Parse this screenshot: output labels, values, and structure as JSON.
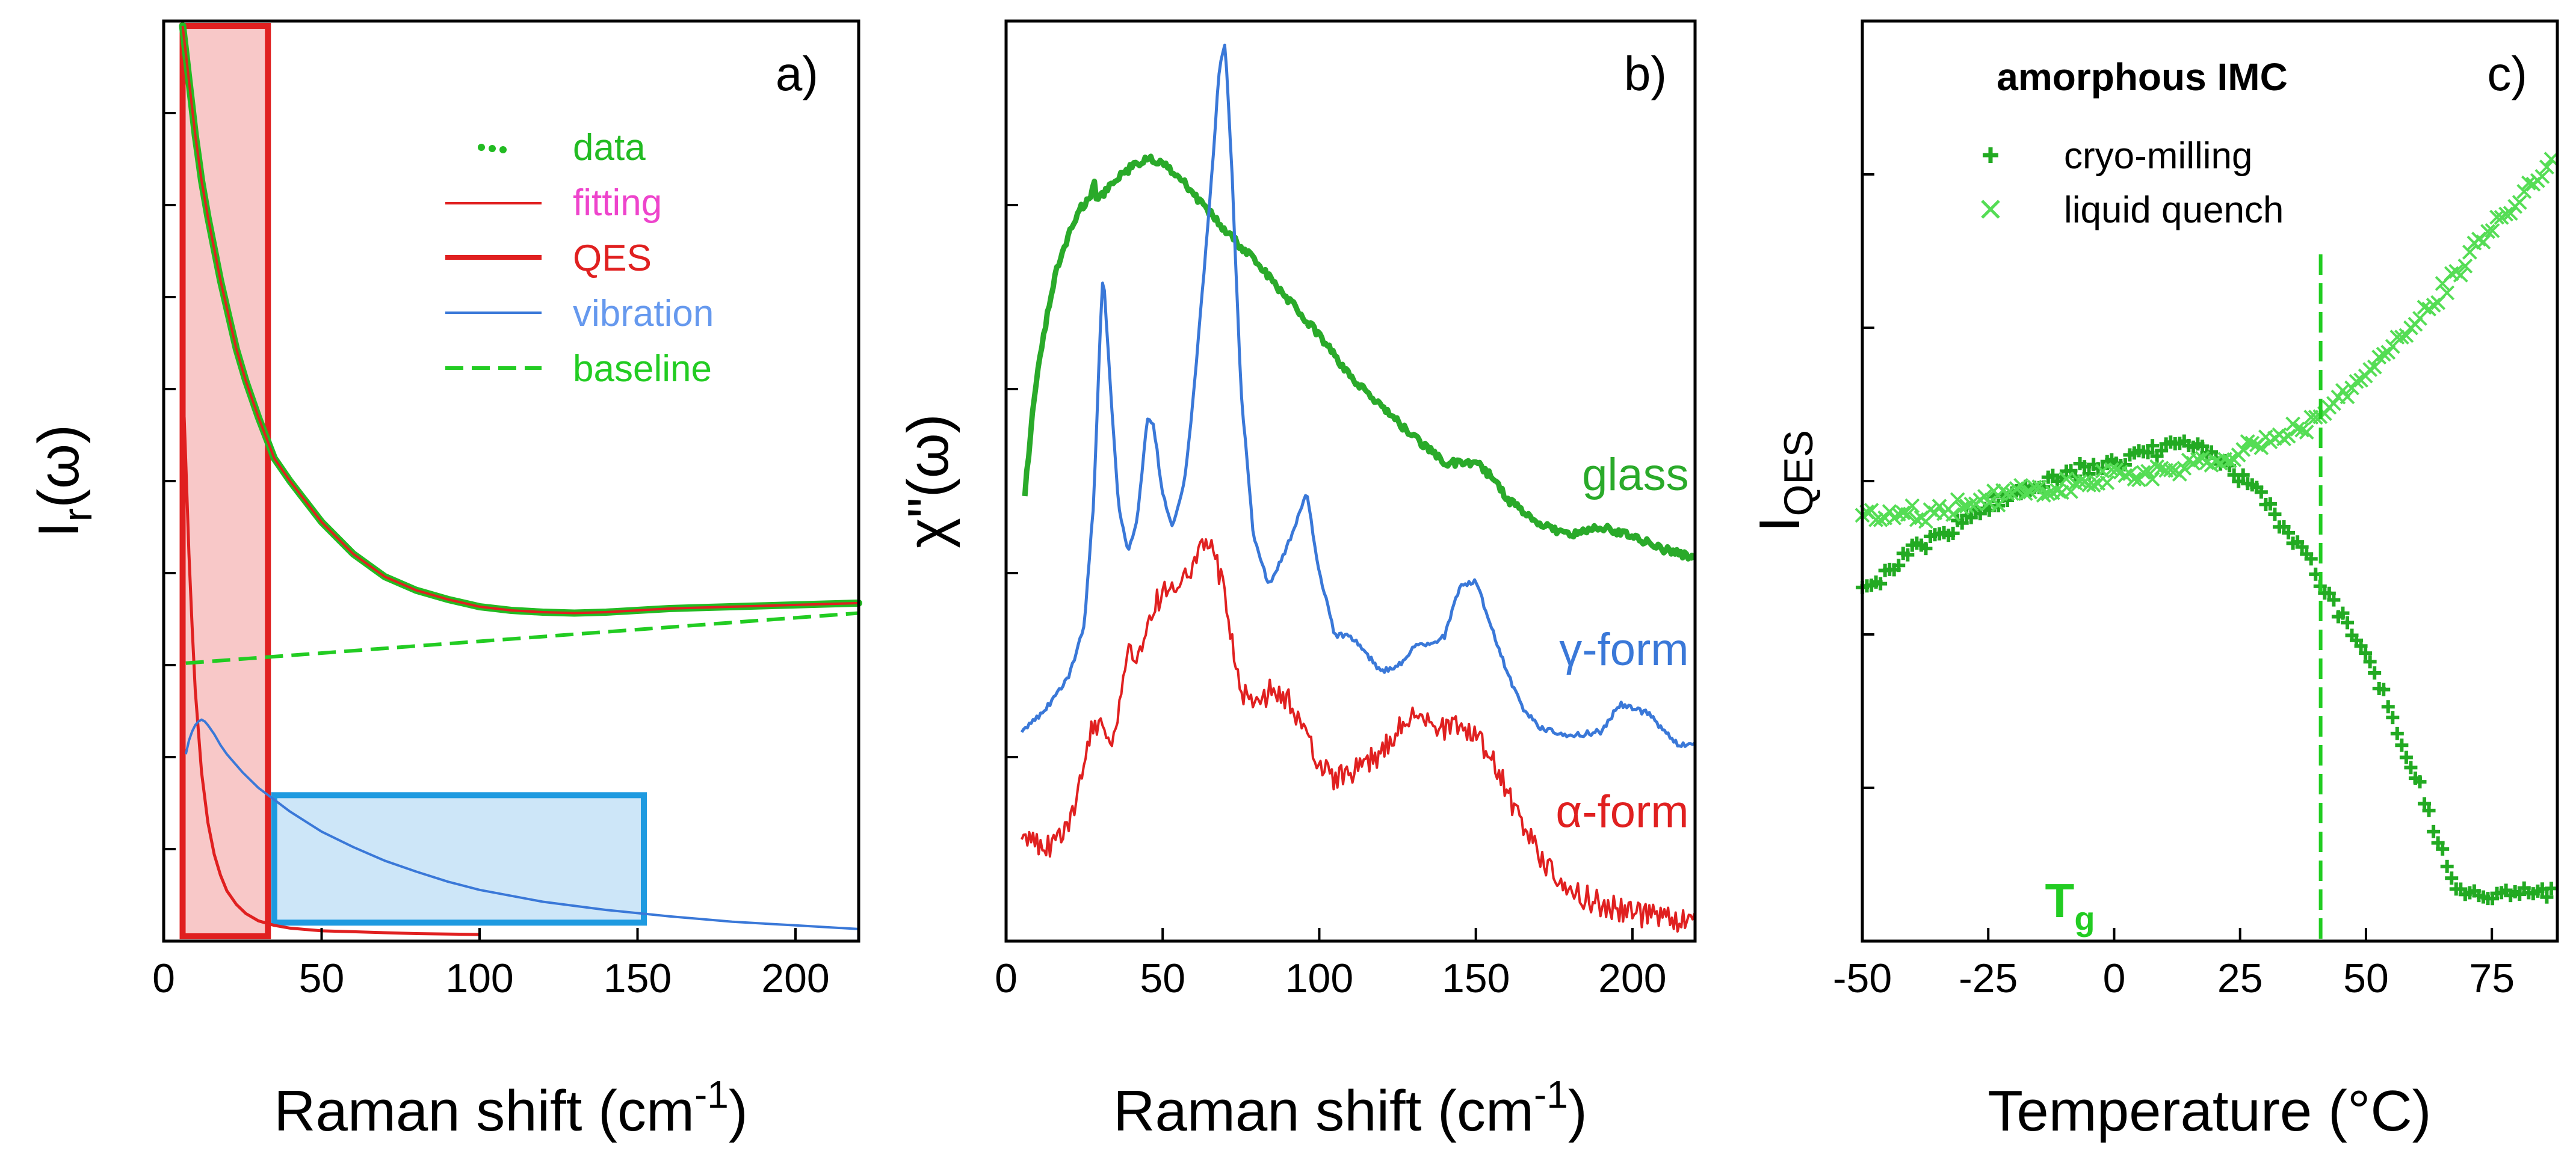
{
  "chart_data": [
    {
      "id": "a",
      "type": "line",
      "panel_label": "a)",
      "xlabel": "Raman shift (cm",
      "xlabel_sup": "-1",
      "xlabel_close": ")",
      "ylabel_main": "I",
      "ylabel_sub": "r",
      "ylabel_rest": "(ω)",
      "xlim": [
        0,
        220
      ],
      "ylim": [
        0,
        1
      ],
      "xticks": [
        0,
        50,
        100,
        150,
        200
      ],
      "legend": [
        {
          "label": "data",
          "color": "#22bb22",
          "style": "dots"
        },
        {
          "label": "fitting",
          "color": "#ee44cc",
          "line": "#e02020",
          "style": "thin"
        },
        {
          "label": "QES",
          "color": "#e02020",
          "style": "thick"
        },
        {
          "label": "vibration",
          "color": "#6699ee",
          "line": "#3a78d8",
          "style": "thin"
        },
        {
          "label": "baseline",
          "color": "#22cc22",
          "style": "dashed"
        }
      ],
      "regions": [
        {
          "name": "qes-region",
          "x": [
            6,
            33
          ],
          "y": [
            0.0,
            1.0
          ],
          "fill": "#f8c8c8",
          "stroke": "#e02020"
        },
        {
          "name": "vibration-region",
          "x": [
            35,
            152
          ],
          "y": [
            0.015,
            0.155
          ],
          "fill": "#cde6f8",
          "stroke": "#1e9ae0"
        }
      ],
      "series": [
        {
          "name": "data",
          "color": "#22bb22",
          "style": "dots",
          "width": 12,
          "x": [
            6,
            7,
            8,
            9,
            10,
            11,
            12,
            14,
            16,
            18,
            20,
            23,
            26,
            30,
            35,
            40,
            50,
            60,
            70,
            80,
            90,
            100,
            110,
            120,
            130,
            140,
            150,
            160,
            170,
            180,
            190,
            200,
            210,
            220
          ],
          "y": [
            1.0,
            0.97,
            0.94,
            0.91,
            0.88,
            0.855,
            0.83,
            0.79,
            0.755,
            0.72,
            0.69,
            0.645,
            0.61,
            0.57,
            0.525,
            0.5,
            0.455,
            0.42,
            0.395,
            0.38,
            0.37,
            0.362,
            0.358,
            0.356,
            0.355,
            0.356,
            0.358,
            0.36,
            0.361,
            0.362,
            0.363,
            0.364,
            0.365,
            0.366
          ]
        },
        {
          "name": "fitting",
          "color": "#e02020",
          "style": "thin",
          "width": 4,
          "x": [
            6,
            8,
            10,
            12,
            14,
            16,
            18,
            20,
            23,
            26,
            30,
            35,
            40,
            50,
            60,
            70,
            80,
            90,
            100,
            110,
            120,
            130,
            140,
            150,
            160,
            170,
            180,
            190,
            200,
            210,
            220
          ],
          "y": [
            1.0,
            0.94,
            0.88,
            0.83,
            0.79,
            0.755,
            0.72,
            0.69,
            0.645,
            0.61,
            0.57,
            0.525,
            0.5,
            0.455,
            0.42,
            0.395,
            0.38,
            0.37,
            0.362,
            0.358,
            0.356,
            0.355,
            0.356,
            0.358,
            0.36,
            0.361,
            0.362,
            0.363,
            0.364,
            0.365,
            0.366
          ]
        },
        {
          "name": "QES",
          "color": "#e02020",
          "style": "thin",
          "width": 5,
          "x": [
            6.5,
            7,
            8,
            9,
            10,
            12,
            14,
            16,
            18,
            20,
            23,
            26,
            30,
            35,
            40,
            50,
            60,
            80,
            100
          ],
          "y": [
            0.57,
            0.52,
            0.42,
            0.34,
            0.27,
            0.18,
            0.125,
            0.09,
            0.067,
            0.05,
            0.035,
            0.025,
            0.017,
            0.012,
            0.009,
            0.006,
            0.005,
            0.003,
            0.002
          ]
        },
        {
          "name": "vibration",
          "color": "#3a78d8",
          "style": "thin",
          "width": 4,
          "x": [
            7,
            8,
            9,
            10,
            11,
            12,
            13,
            14,
            16,
            18,
            20,
            25,
            30,
            35,
            40,
            50,
            60,
            70,
            80,
            90,
            100,
            120,
            140,
            160,
            180,
            200,
            220
          ],
          "y": [
            0.2,
            0.215,
            0.225,
            0.232,
            0.236,
            0.238,
            0.236,
            0.232,
            0.222,
            0.21,
            0.2,
            0.18,
            0.163,
            0.15,
            0.137,
            0.115,
            0.098,
            0.083,
            0.071,
            0.06,
            0.051,
            0.038,
            0.029,
            0.022,
            0.016,
            0.012,
            0.008
          ]
        },
        {
          "name": "baseline",
          "color": "#22cc22",
          "style": "dashed",
          "width": 6,
          "x": [
            7,
            220
          ],
          "y": [
            0.3,
            0.355
          ]
        }
      ]
    },
    {
      "id": "b",
      "type": "line",
      "panel_label": "b)",
      "xlabel": "Raman shift (cm",
      "xlabel_sup": "-1",
      "xlabel_close": ")",
      "ylabel_main": "χ\"(ω)",
      "xlim": [
        0,
        220
      ],
      "ylim": [
        0,
        1
      ],
      "xticks": [
        0,
        50,
        100,
        150,
        200
      ],
      "series_labels": [
        {
          "text": "glass",
          "color": "#2aaa2a",
          "x": 218,
          "y": 0.49
        },
        {
          "text": "γ-form",
          "color": "#3a78d8",
          "x": 218,
          "y": 0.298
        },
        {
          "text": "α-form",
          "color": "#e02020",
          "x": 218,
          "y": 0.12
        }
      ],
      "series": [
        {
          "name": "glass",
          "color": "#2aaa2a",
          "style": "thick",
          "width": 9,
          "jitter": 0.004,
          "x": [
            6,
            8,
            10,
            13,
            16,
            20,
            24,
            27,
            28,
            29,
            31,
            35,
            40,
            46,
            50,
            55,
            60,
            65,
            70,
            80,
            90,
            100,
            110,
            120,
            130,
            140,
            150,
            155,
            160,
            170,
            180,
            190,
            200,
            210,
            220
          ],
          "y": [
            0.485,
            0.56,
            0.62,
            0.68,
            0.73,
            0.77,
            0.8,
            0.81,
            0.83,
            0.81,
            0.815,
            0.83,
            0.845,
            0.855,
            0.85,
            0.835,
            0.815,
            0.795,
            0.775,
            0.74,
            0.7,
            0.66,
            0.615,
            0.58,
            0.55,
            0.52,
            0.52,
            0.505,
            0.48,
            0.455,
            0.44,
            0.45,
            0.44,
            0.425,
            0.415
          ]
        },
        {
          "name": "γ-form",
          "color": "#3a78d8",
          "style": "thin",
          "width": 5,
          "jitter": 0.003,
          "x": [
            5,
            10,
            15,
            20,
            25,
            28,
            30,
            31,
            33,
            36,
            39,
            42,
            45,
            47,
            50,
            53,
            57,
            60,
            63,
            66,
            68,
            70,
            72,
            75,
            79,
            84,
            90,
            96,
            100,
            105,
            110,
            115,
            120,
            126,
            131,
            135,
            140,
            145,
            150,
            155,
            160,
            165,
            170,
            180,
            190,
            196,
            200,
            205,
            210,
            215,
            220
          ],
          "y": [
            0.225,
            0.24,
            0.26,
            0.285,
            0.34,
            0.48,
            0.66,
            0.73,
            0.62,
            0.47,
            0.42,
            0.46,
            0.57,
            0.565,
            0.485,
            0.45,
            0.5,
            0.6,
            0.72,
            0.85,
            0.95,
            0.98,
            0.85,
            0.6,
            0.44,
            0.385,
            0.43,
            0.485,
            0.4,
            0.33,
            0.33,
            0.31,
            0.29,
            0.3,
            0.32,
            0.32,
            0.33,
            0.385,
            0.39,
            0.34,
            0.29,
            0.25,
            0.23,
            0.22,
            0.225,
            0.255,
            0.25,
            0.245,
            0.225,
            0.21,
            0.21
          ]
        },
        {
          "name": "α-form",
          "color": "#e02020",
          "style": "thin",
          "width": 4,
          "jitter": 0.014,
          "x": [
            5,
            10,
            15,
            20,
            25,
            28,
            30,
            33,
            36,
            39,
            42,
            45,
            48,
            52,
            56,
            60,
            63,
            66,
            70,
            75,
            80,
            85,
            90,
            95,
            100,
            105,
            110,
            115,
            120,
            126,
            130,
            135,
            140,
            145,
            150,
            155,
            160,
            165,
            170,
            175,
            180,
            190,
            200,
            210,
            220
          ],
          "y": [
            0.11,
            0.1,
            0.1,
            0.12,
            0.18,
            0.24,
            0.23,
            0.21,
            0.25,
            0.31,
            0.3,
            0.35,
            0.37,
            0.38,
            0.395,
            0.41,
            0.425,
            0.43,
            0.37,
            0.27,
            0.26,
            0.27,
            0.26,
            0.22,
            0.19,
            0.17,
            0.18,
            0.19,
            0.2,
            0.235,
            0.24,
            0.235,
            0.23,
            0.23,
            0.22,
            0.2,
            0.16,
            0.12,
            0.09,
            0.07,
            0.05,
            0.035,
            0.025,
            0.02,
            0.015
          ]
        }
      ]
    },
    {
      "id": "c",
      "type": "scatter",
      "panel_label": "c)",
      "title": "amorphous IMC",
      "xlabel": "Temperature (°C)",
      "ylabel_main": "I",
      "ylabel_sub": "QES",
      "xlim": [
        -50,
        88
      ],
      "ylim": [
        0,
        1
      ],
      "xticks": [
        -50,
        -25,
        0,
        25,
        50,
        75
      ],
      "vline": {
        "x": 41,
        "label_main": "T",
        "label_sub": "g",
        "color": "#22cc22"
      },
      "legend": [
        {
          "label": "cryo-milling",
          "color": "#22aa22",
          "marker": "plus"
        },
        {
          "label": "liquid quench",
          "color": "#55dd55",
          "marker": "cross"
        }
      ],
      "series": [
        {
          "name": "cryo-milling",
          "color": "#22aa22",
          "marker": "plus",
          "jitter": 0.007,
          "x": [
            -50,
            -48,
            -46,
            -44,
            -42,
            -40,
            -38,
            -36,
            -34,
            -32,
            -30,
            -28,
            -26,
            -24,
            -22,
            -20,
            -18,
            -16,
            -14,
            -12,
            -10,
            -8,
            -6,
            -4,
            -2,
            0,
            2,
            4,
            6,
            8,
            10,
            12,
            14,
            16,
            18,
            20,
            22,
            24,
            26,
            28,
            30,
            32,
            34,
            36,
            38,
            40,
            42,
            44,
            46,
            48,
            50,
            52,
            54,
            56,
            58,
            60,
            62,
            64,
            66,
            68,
            70,
            72,
            74,
            76,
            78,
            80,
            82,
            84,
            86,
            87
          ],
          "y": [
            0.385,
            0.385,
            0.39,
            0.4,
            0.41,
            0.42,
            0.425,
            0.435,
            0.44,
            0.445,
            0.455,
            0.465,
            0.47,
            0.475,
            0.48,
            0.485,
            0.49,
            0.495,
            0.5,
            0.505,
            0.51,
            0.51,
            0.515,
            0.515,
            0.52,
            0.52,
            0.525,
            0.53,
            0.53,
            0.535,
            0.535,
            0.54,
            0.545,
            0.54,
            0.535,
            0.525,
            0.52,
            0.51,
            0.5,
            0.49,
            0.475,
            0.46,
            0.445,
            0.43,
            0.415,
            0.395,
            0.375,
            0.355,
            0.34,
            0.32,
            0.3,
            0.275,
            0.25,
            0.22,
            0.19,
            0.16,
            0.13,
            0.09,
            0.06,
            0.035,
            0.025,
            0.025,
            0.025,
            0.028,
            0.026,
            0.026,
            0.028,
            0.028,
            0.03,
            0.03
          ]
        },
        {
          "name": "liquid quench",
          "color": "#55dd55",
          "marker": "cross",
          "jitter": 0.009,
          "x": [
            -50,
            -47,
            -44,
            -41,
            -38,
            -35,
            -32,
            -29,
            -26,
            -23,
            -20,
            -17,
            -14,
            -11,
            -8,
            -5,
            -2,
            1,
            4,
            7,
            10,
            13,
            16,
            19,
            22,
            25,
            28,
            31,
            34,
            37,
            40,
            43,
            46,
            49,
            52,
            55,
            58,
            61,
            64,
            67,
            70,
            73,
            76,
            79,
            82,
            85,
            87
          ],
          "y": [
            0.455,
            0.46,
            0.465,
            0.465,
            0.46,
            0.465,
            0.47,
            0.475,
            0.48,
            0.48,
            0.485,
            0.49,
            0.49,
            0.495,
            0.495,
            0.5,
            0.505,
            0.505,
            0.51,
            0.51,
            0.515,
            0.515,
            0.52,
            0.525,
            0.53,
            0.535,
            0.54,
            0.55,
            0.555,
            0.56,
            0.57,
            0.58,
            0.6,
            0.615,
            0.63,
            0.65,
            0.67,
            0.69,
            0.71,
            0.73,
            0.755,
            0.775,
            0.795,
            0.815,
            0.835,
            0.855,
            0.865
          ]
        }
      ]
    }
  ]
}
